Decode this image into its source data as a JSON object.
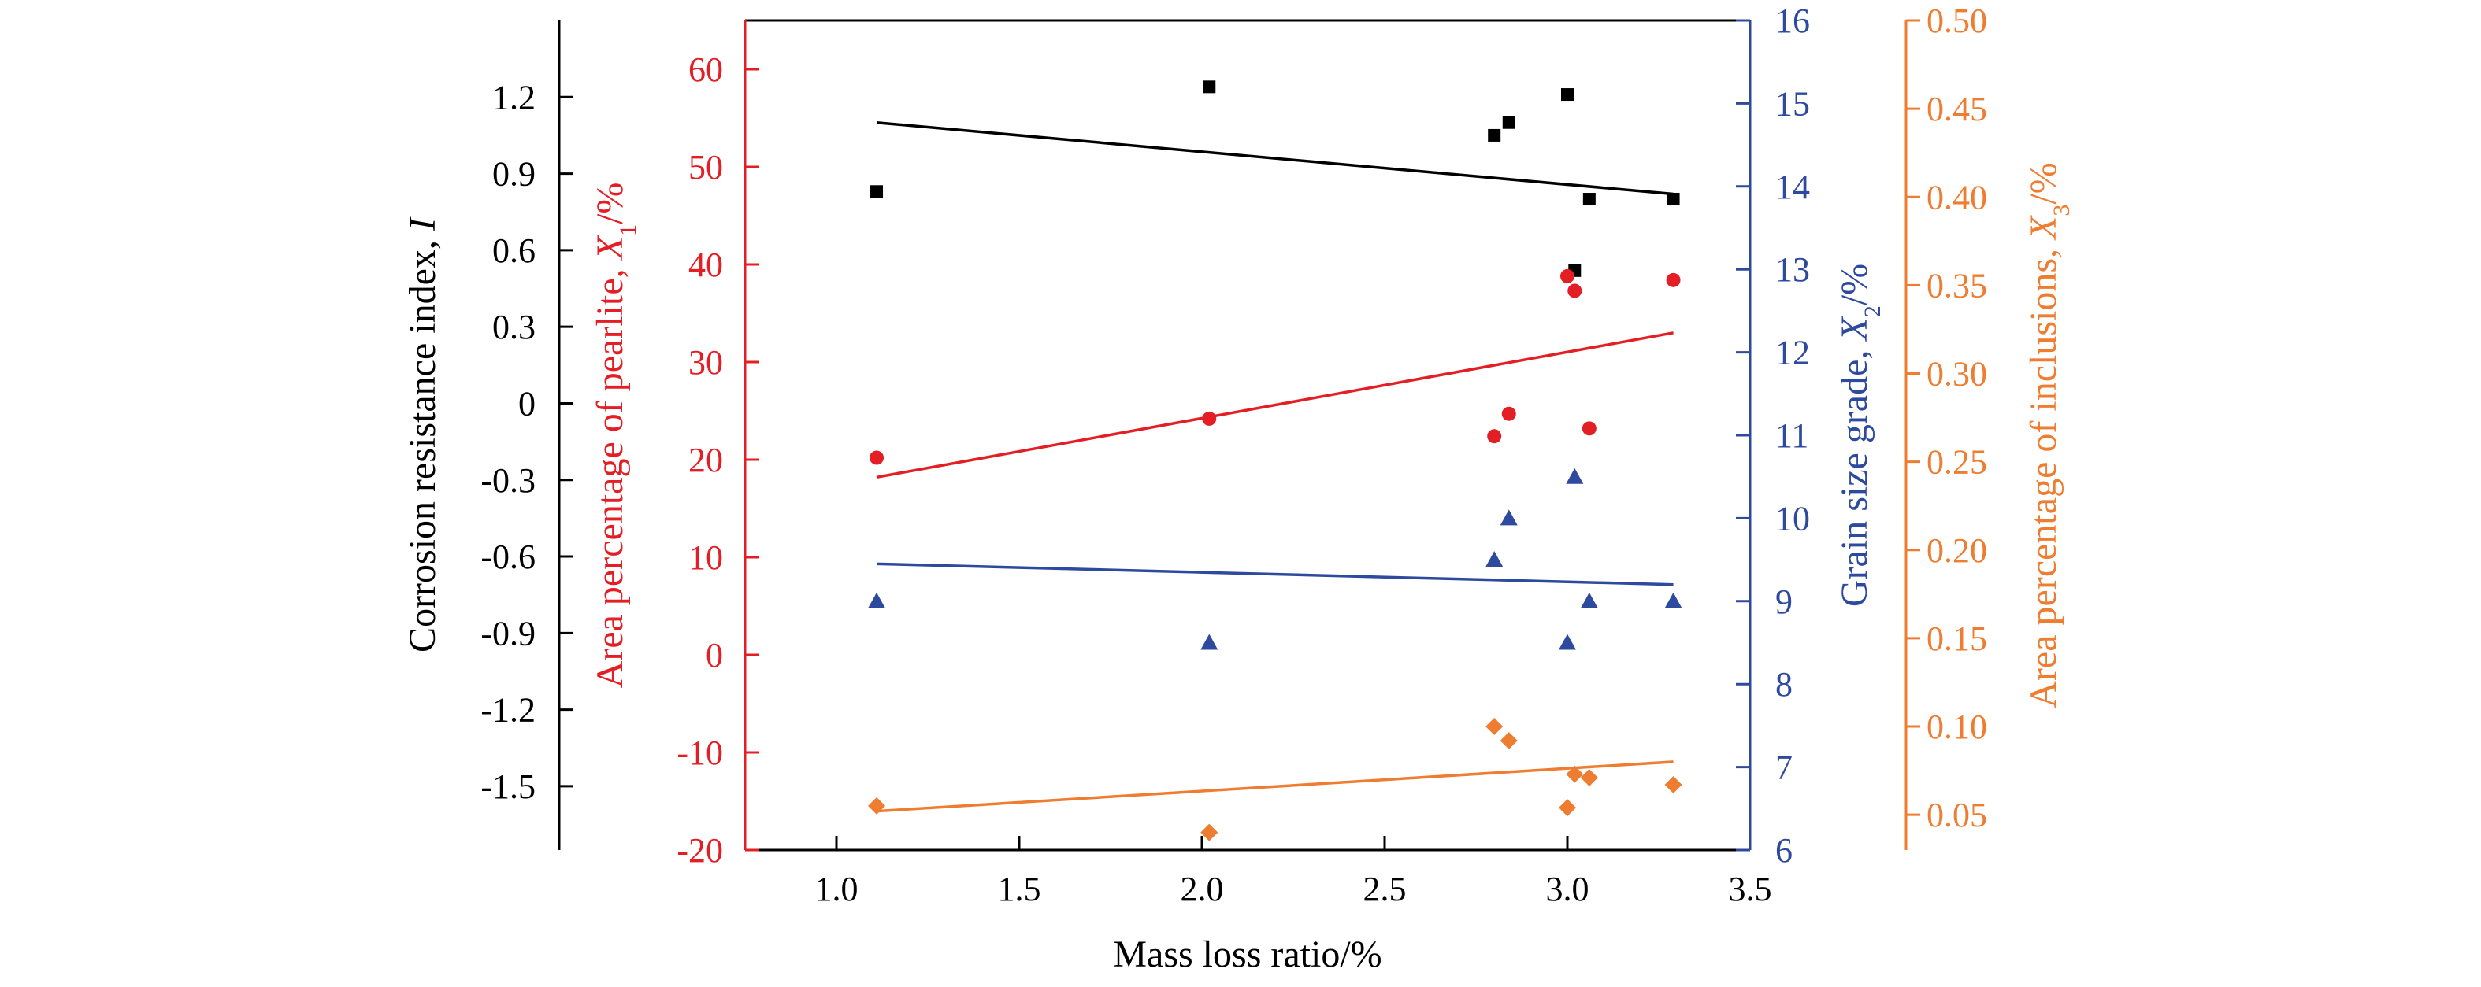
{
  "chart_data": {
    "type": "scatter",
    "xlabel": "Mass loss ratio/%",
    "xlim": [
      0.75,
      3.5
    ],
    "xticks": [
      "1.0",
      "1.5",
      "2.0",
      "2.5",
      "3.0",
      "3.5"
    ],
    "axes": {
      "I": {
        "label_main": "Corrosion resistance index, ",
        "label_var": "I",
        "label_sub": "",
        "label_unit": "",
        "color": "#000000",
        "ylim": [
          -1.75,
          1.5
        ],
        "ticks": [
          "1.2",
          "0.9",
          "0.6",
          "0.3",
          "0",
          "-0.3",
          "-0.6",
          "-0.9",
          "-1.2",
          "-1.5"
        ]
      },
      "X1": {
        "label_main": "Area percentage of pearlite, ",
        "label_var": "X",
        "label_sub": "1",
        "label_unit": "/%",
        "color": "#e31e24",
        "ylim": [
          -20,
          65
        ],
        "ticks": [
          "60",
          "50",
          "40",
          "30",
          "20",
          "10",
          "0",
          "-10",
          "-20"
        ]
      },
      "X2": {
        "label_main": "Grain size grade, ",
        "label_var": "X",
        "label_sub": "2",
        "label_unit": "/%",
        "color": "#2e4a9e",
        "ylim": [
          6,
          16
        ],
        "ticks": [
          "16",
          "15",
          "14",
          "13",
          "12",
          "11",
          "10",
          "9",
          "8",
          "7",
          "6"
        ]
      },
      "X3": {
        "label_main": "Area percentage of inclusions, ",
        "label_var": "X",
        "label_sub": "3",
        "label_unit": "/%",
        "color": "#ee7d31",
        "ylim": [
          0.03,
          0.5
        ],
        "ticks": [
          "0.50",
          "0.45",
          "0.40",
          "0.35",
          "0.30",
          "0.25",
          "0.20",
          "0.15",
          "0.10",
          "0.05"
        ]
      }
    },
    "series": [
      {
        "axis": "I",
        "marker": "square",
        "color": "#000000",
        "points": [
          [
            1.11,
            0.83
          ],
          [
            2.02,
            1.24
          ],
          [
            2.8,
            1.05
          ],
          [
            2.84,
            1.1
          ],
          [
            3.0,
            1.21
          ],
          [
            3.02,
            0.52
          ],
          [
            3.06,
            0.8
          ],
          [
            3.29,
            0.8
          ]
        ],
        "fit": [
          [
            1.11,
            1.1
          ],
          [
            3.29,
            0.82
          ]
        ]
      },
      {
        "axis": "X1",
        "marker": "circle",
        "color": "#e31e24",
        "points": [
          [
            1.11,
            20.2
          ],
          [
            2.02,
            24.2
          ],
          [
            2.8,
            22.4
          ],
          [
            2.84,
            24.7
          ],
          [
            3.0,
            38.8
          ],
          [
            3.02,
            37.3
          ],
          [
            3.06,
            23.2
          ],
          [
            3.29,
            38.4
          ]
        ],
        "fit": [
          [
            1.11,
            18.2
          ],
          [
            3.29,
            33
          ]
        ]
      },
      {
        "axis": "X2",
        "marker": "triangle",
        "color": "#2e4a9e",
        "points": [
          [
            1.11,
            9.0
          ],
          [
            2.02,
            8.5
          ],
          [
            2.8,
            9.5
          ],
          [
            2.84,
            10.0
          ],
          [
            3.0,
            8.5
          ],
          [
            3.02,
            10.5
          ],
          [
            3.06,
            9.0
          ],
          [
            3.29,
            9.0
          ]
        ],
        "fit": [
          [
            1.11,
            9.45
          ],
          [
            3.29,
            9.2
          ]
        ]
      },
      {
        "axis": "X3",
        "marker": "diamond",
        "color": "#ee7d31",
        "points": [
          [
            1.11,
            0.055
          ],
          [
            2.02,
            0.04
          ],
          [
            2.8,
            0.1
          ],
          [
            2.84,
            0.092
          ],
          [
            3.0,
            0.054
          ],
          [
            3.02,
            0.073
          ],
          [
            3.06,
            0.071
          ],
          [
            3.29,
            0.067
          ]
        ],
        "fit": [
          [
            1.11,
            0.052
          ],
          [
            3.29,
            0.08
          ]
        ]
      }
    ]
  }
}
